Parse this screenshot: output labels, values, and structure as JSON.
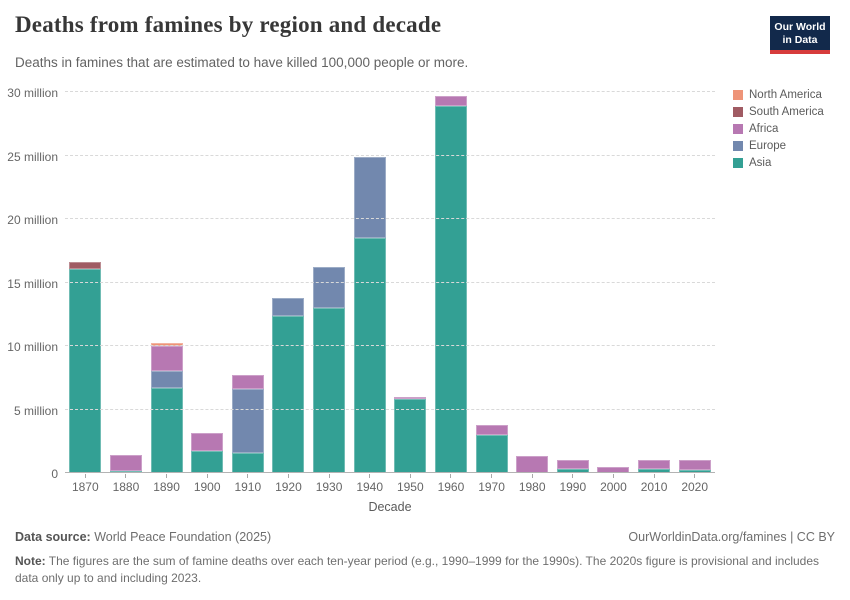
{
  "header": {
    "title": "Deaths from famines by region and decade",
    "subtitle": "Deaths in famines that are estimated to have killed 100,000 people or more.",
    "logo": {
      "line1": "Our World",
      "line2": "in Data",
      "bg_color": "#12294B",
      "accent_color": "#D73C3C"
    }
  },
  "chart_data": {
    "type": "bar",
    "stacked": true,
    "title": "Deaths from famines by region and decade",
    "xlabel": "Decade",
    "ylabel": "",
    "unit": "million deaths",
    "ylim": [
      0,
      30
    ],
    "grid": "horizontal-dashed",
    "legend_position": "right",
    "categories": [
      "1870",
      "1880",
      "1890",
      "1900",
      "1910",
      "1920",
      "1930",
      "1940",
      "1950",
      "1960",
      "1970",
      "1980",
      "1990",
      "2000",
      "2010",
      "2020"
    ],
    "yticks": [
      {
        "value": 0,
        "label": "0"
      },
      {
        "value": 5,
        "label": "5 million"
      },
      {
        "value": 10,
        "label": "10 million"
      },
      {
        "value": 15,
        "label": "15 million"
      },
      {
        "value": 20,
        "label": "20 million"
      },
      {
        "value": 25,
        "label": "25 million"
      },
      {
        "value": 30,
        "label": "30 million"
      }
    ],
    "series": [
      {
        "name": "Asia",
        "color": "#33A094",
        "values": [
          16.1,
          0.15,
          6.7,
          1.7,
          1.6,
          12.35,
          13.0,
          18.5,
          5.85,
          28.9,
          3.0,
          0,
          0.3,
          0,
          0.3,
          0.2
        ]
      },
      {
        "name": "Europe",
        "color": "#7288AE",
        "values": [
          0,
          0,
          1.3,
          0,
          5.0,
          1.4,
          3.2,
          6.4,
          0,
          0,
          0,
          0,
          0,
          0,
          0,
          0
        ]
      },
      {
        "name": "Africa",
        "color": "#B778B2",
        "values": [
          0,
          1.25,
          2.0,
          1.45,
          1.1,
          0,
          0,
          0,
          0.1,
          0.8,
          0.8,
          1.35,
          0.7,
          0.45,
          0.75,
          0.8
        ]
      },
      {
        "name": "South America",
        "color": "#A05B63",
        "values": [
          0.5,
          0,
          0,
          0,
          0,
          0,
          0,
          0,
          0,
          0,
          0,
          0,
          0,
          0,
          0,
          0
        ]
      },
      {
        "name": "North America",
        "color": "#EE9478",
        "values": [
          0,
          0,
          0.25,
          0,
          0,
          0,
          0,
          0,
          0,
          0,
          0,
          0,
          0,
          0,
          0,
          0
        ]
      }
    ]
  },
  "footer": {
    "source_label": "Data source:",
    "source_value": " World Peace Foundation (2025)",
    "link": "OurWorldinData.org/famines",
    "separator": " | ",
    "license": "CC BY",
    "note_label": "Note:",
    "note_text": " The figures are the sum of famine deaths over each ten-year period (e.g., 1990–1999 for the 1990s). The 2020s figure is provisional and includes data only up to and including 2023."
  }
}
